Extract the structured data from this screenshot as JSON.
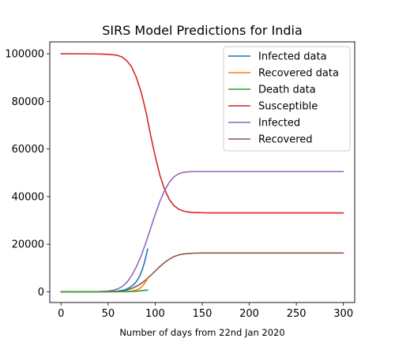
{
  "chart_data": {
    "type": "line",
    "title": "SIRS Model Predictions for India",
    "xlabel": "Number of days from 22nd Jan 2020",
    "ylabel": "",
    "xlim": [
      -12,
      312
    ],
    "ylim": [
      -4500,
      105000
    ],
    "xticks": [
      0,
      50,
      100,
      150,
      200,
      250,
      300
    ],
    "yticks": [
      0,
      20000,
      40000,
      60000,
      80000,
      100000
    ],
    "grid": false,
    "legend_position": "top-right",
    "series": [
      {
        "name": "Infected data",
        "color": "#1f77b4",
        "x": [
          0,
          40,
          55,
          60,
          65,
          68,
          70,
          72,
          74,
          76,
          78,
          80,
          82,
          84,
          86,
          88,
          90,
          92
        ],
        "y": [
          0,
          5,
          120,
          300,
          600,
          900,
          1200,
          1600,
          2100,
          2700,
          3400,
          4300,
          5500,
          7000,
          9000,
          11500,
          14500,
          18000
        ]
      },
      {
        "name": "Recovered data",
        "color": "#ff7f0e",
        "x": [
          0,
          60,
          70,
          75,
          80,
          84,
          86,
          88,
          90,
          92
        ],
        "y": [
          0,
          50,
          150,
          300,
          700,
          1500,
          2300,
          3200,
          4300,
          5500
        ]
      },
      {
        "name": "Death data",
        "color": "#2ca02c",
        "x": [
          0,
          60,
          70,
          80,
          85,
          90,
          92
        ],
        "y": [
          0,
          20,
          80,
          250,
          450,
          650,
          750
        ]
      },
      {
        "name": "Susceptible",
        "color": "#d62728",
        "x": [
          0,
          20,
          40,
          50,
          55,
          60,
          65,
          70,
          75,
          80,
          85,
          90,
          95,
          100,
          105,
          110,
          115,
          120,
          125,
          130,
          135,
          140,
          150,
          160,
          180,
          200,
          250,
          300
        ],
        "y": [
          100000,
          99980,
          99900,
          99750,
          99600,
          99300,
          98600,
          97000,
          94500,
          90000,
          84000,
          76000,
          66000,
          57000,
          49000,
          43000,
          38800,
          36200,
          34700,
          33900,
          33500,
          33300,
          33200,
          33150,
          33150,
          33150,
          33150,
          33150
        ]
      },
      {
        "name": "Infected",
        "color": "#9467bd",
        "x": [
          0,
          20,
          40,
          50,
          55,
          60,
          65,
          70,
          75,
          80,
          85,
          90,
          95,
          100,
          105,
          110,
          115,
          120,
          125,
          130,
          135,
          140,
          150,
          160,
          180,
          200,
          250,
          300
        ],
        "y": [
          0,
          20,
          100,
          300,
          600,
          1200,
          2200,
          4000,
          6800,
          10500,
          15000,
          20500,
          26500,
          32500,
          38000,
          42500,
          46000,
          48300,
          49600,
          50200,
          50400,
          50500,
          50500,
          50500,
          50500,
          50500,
          50500,
          50500
        ]
      },
      {
        "name": "Recovered",
        "color": "#8c564b",
        "x": [
          0,
          20,
          40,
          50,
          60,
          65,
          70,
          75,
          80,
          85,
          90,
          95,
          100,
          105,
          110,
          115,
          120,
          125,
          130,
          135,
          140,
          145,
          150,
          160,
          180,
          200,
          250,
          300
        ],
        "y": [
          0,
          5,
          30,
          80,
          250,
          450,
          800,
          1400,
          2300,
          3500,
          5000,
          6800,
          8700,
          10600,
          12300,
          13700,
          14800,
          15500,
          15900,
          16100,
          16200,
          16250,
          16300,
          16300,
          16300,
          16300,
          16300,
          16300
        ]
      }
    ]
  }
}
